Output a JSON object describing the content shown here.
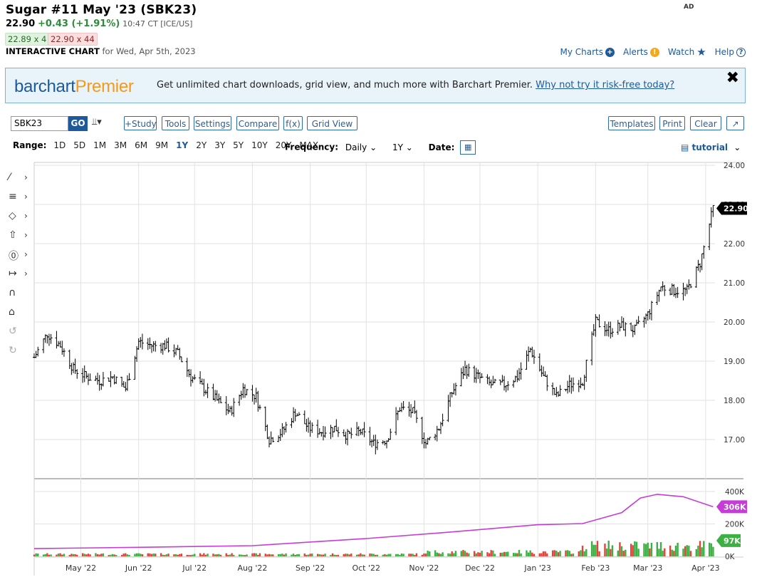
{
  "header": {
    "title": "Sugar #11 May '23 (SBK23)",
    "last": "22.90",
    "change": "+0.43 (+1.91%)",
    "time": "10:47 CT [ICE/US]",
    "bid": "22.89 x 4",
    "ask": "22.90 x 44",
    "chart_label": "INTERACTIVE CHART",
    "chart_date": "for Wed, Apr 5th, 2023",
    "ad": "AD"
  },
  "toplinks": {
    "my_charts": "My Charts",
    "alerts": "Alerts",
    "watch": "Watch",
    "help": "Help"
  },
  "banner": {
    "logo_a": "barchart",
    "logo_b": "Premier",
    "text": "Get unlimited chart downloads, grid view, and much more with Barchart Premier.",
    "link": "Why not try it risk-free today?",
    "close": "✖"
  },
  "toolbar": {
    "symbol": "SBK23",
    "go": "GO",
    "study": "+Study",
    "tools": "Tools",
    "settings": "Settings",
    "compare": "Compare",
    "fx": "f(x)",
    "grid_view": "Grid View",
    "templates": "Templates",
    "print": "Print",
    "clear": "Clear"
  },
  "rangebar": {
    "label": "Range:",
    "ranges": [
      "1D",
      "5D",
      "1M",
      "3M",
      "6M",
      "9M",
      "1Y",
      "2Y",
      "3Y",
      "5Y",
      "10Y",
      "20Y",
      "MAX"
    ],
    "selected": "1Y",
    "frequency_label": "Frequency:",
    "frequency": "Daily",
    "period": "1Y",
    "date_label": "Date:",
    "tutorial": "tutorial"
  },
  "colors": {
    "accent": "#1d5a9c",
    "premier": "#f39a1d",
    "positive": "#2e8b3a",
    "volume_up": "#3cb043",
    "volume_down": "#e0443a",
    "open_interest": "#c53cd6",
    "bars": "#000000"
  },
  "chart_data": {
    "type": "ohlc",
    "title": "",
    "price_axis": {
      "ylim": [
        16.0,
        24.0
      ],
      "ticks": [
        "24.00",
        "23.00",
        "22.00",
        "21.00",
        "20.00",
        "19.00",
        "18.00",
        "17.00"
      ]
    },
    "x_labels": [
      "May '22",
      "Jun '22",
      "Jul '22",
      "Aug '22",
      "Sep '22",
      "Oct '22",
      "Nov '22",
      "Dec '22",
      "Jan '23",
      "Feb '23",
      "Mar '23",
      "Apr '23"
    ],
    "last_price_label": "22.90",
    "price_path": [
      [
        "2022-04-06",
        19.1
      ],
      [
        "2022-04-13",
        19.7
      ],
      [
        "2022-04-20",
        19.4
      ],
      [
        "2022-04-27",
        18.8
      ],
      [
        "2022-05-04",
        18.6
      ],
      [
        "2022-05-11",
        18.5
      ],
      [
        "2022-05-18",
        18.6
      ],
      [
        "2022-05-25",
        18.3
      ],
      [
        "2022-06-01",
        19.5
      ],
      [
        "2022-06-08",
        19.4
      ],
      [
        "2022-06-15",
        19.4
      ],
      [
        "2022-06-22",
        19.2
      ],
      [
        "2022-06-29",
        18.6
      ],
      [
        "2022-07-06",
        18.3
      ],
      [
        "2022-07-13",
        18.0
      ],
      [
        "2022-07-20",
        17.7
      ],
      [
        "2022-07-27",
        18.3
      ],
      [
        "2022-08-03",
        18.1
      ],
      [
        "2022-08-10",
        17.0
      ],
      [
        "2022-08-17",
        17.2
      ],
      [
        "2022-08-24",
        17.7
      ],
      [
        "2022-08-31",
        17.3
      ],
      [
        "2022-09-07",
        17.2
      ],
      [
        "2022-09-14",
        17.3
      ],
      [
        "2022-09-21",
        17.1
      ],
      [
        "2022-09-28",
        17.2
      ],
      [
        "2022-10-05",
        16.9
      ],
      [
        "2022-10-12",
        17.0
      ],
      [
        "2022-10-19",
        17.8
      ],
      [
        "2022-10-26",
        17.7
      ],
      [
        "2022-11-02",
        16.9
      ],
      [
        "2022-11-09",
        17.3
      ],
      [
        "2022-11-16",
        18.2
      ],
      [
        "2022-11-23",
        18.8
      ],
      [
        "2022-11-30",
        18.6
      ],
      [
        "2022-12-07",
        18.4
      ],
      [
        "2022-12-14",
        18.4
      ],
      [
        "2022-12-21",
        18.6
      ],
      [
        "2022-12-28",
        19.3
      ],
      [
        "2023-01-04",
        18.6
      ],
      [
        "2023-01-11",
        18.1
      ],
      [
        "2023-01-18",
        18.4
      ],
      [
        "2023-01-25",
        18.5
      ],
      [
        "2023-02-01",
        20.0
      ],
      [
        "2023-02-08",
        19.8
      ],
      [
        "2023-02-15",
        19.9
      ],
      [
        "2023-02-22",
        19.8
      ],
      [
        "2023-03-01",
        20.2
      ],
      [
        "2023-03-08",
        20.9
      ],
      [
        "2023-03-15",
        20.8
      ],
      [
        "2023-03-22",
        20.8
      ],
      [
        "2023-03-29",
        21.5
      ],
      [
        "2023-04-05",
        22.9
      ]
    ],
    "volume_axis": {
      "ylim": [
        0,
        400000
      ],
      "ticks": [
        "400K",
        "200K",
        "0K"
      ]
    },
    "open_interest_label": "306K",
    "volume_label": "97K",
    "open_interest_path": [
      [
        "2022-04-06",
        48000
      ],
      [
        "2022-06-01",
        56000
      ],
      [
        "2022-08-01",
        66000
      ],
      [
        "2022-10-01",
        110000
      ],
      [
        "2022-11-15",
        150000
      ],
      [
        "2023-01-01",
        195000
      ],
      [
        "2023-01-25",
        202000
      ],
      [
        "2023-02-15",
        270000
      ],
      [
        "2023-02-25",
        360000
      ],
      [
        "2023-03-06",
        383000
      ],
      [
        "2023-03-20",
        368000
      ],
      [
        "2023-04-05",
        306000
      ]
    ]
  }
}
